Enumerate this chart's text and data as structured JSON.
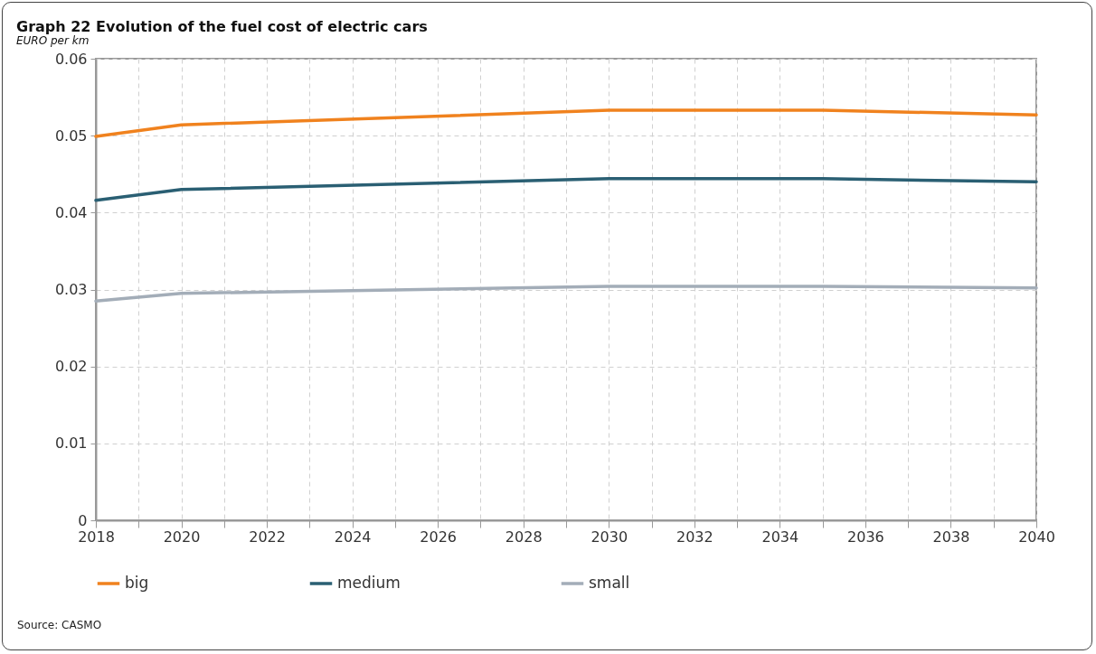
{
  "chart_data": {
    "type": "line",
    "title": "Graph 22   Evolution of the fuel cost of electric cars",
    "subtitle": "EURO per km",
    "annotations": [
      "Source: CASMO"
    ],
    "series": [
      {
        "name": "big",
        "color": "#f0821e",
        "x": [
          2018,
          2020,
          2030,
          2035,
          2040
        ],
        "values": [
          0.0499,
          0.0514,
          0.0533,
          0.0533,
          0.0527
        ]
      },
      {
        "name": "medium",
        "color": "#2a5f73",
        "x": [
          2018,
          2020,
          2030,
          2035,
          2040
        ],
        "values": [
          0.0416,
          0.043,
          0.0444,
          0.0444,
          0.044
        ]
      },
      {
        "name": "small",
        "color": "#a3adb8",
        "x": [
          2018,
          2020,
          2030,
          2035,
          2040
        ],
        "values": [
          0.0285,
          0.0295,
          0.0304,
          0.0304,
          0.0302
        ]
      }
    ],
    "xlim": [
      2018,
      2040
    ],
    "xticks": [
      2018,
      {
        "value": 2019,
        "label": null
      },
      2020,
      {
        "value": 2021,
        "label": null
      },
      2022,
      {
        "value": 2023,
        "label": null
      },
      2024,
      {
        "value": 2025,
        "label": null
      },
      2026,
      {
        "value": 2027,
        "label": null
      },
      2028,
      {
        "value": 2029,
        "label": null
      },
      2030,
      {
        "value": 2031,
        "label": null
      },
      2032,
      {
        "value": 2033,
        "label": null
      },
      2034,
      {
        "value": 2035,
        "label": null
      },
      2036,
      {
        "value": 2037,
        "label": null
      },
      2038,
      {
        "value": 2039,
        "label": null
      },
      2040
    ],
    "ylim": [
      0,
      0.06
    ],
    "yticks": [
      0,
      0.01,
      0.02,
      0.03,
      0.04,
      0.05,
      0.06
    ],
    "grid": true,
    "legend": "bottom",
    "line_style": "solid",
    "marker": "none"
  }
}
